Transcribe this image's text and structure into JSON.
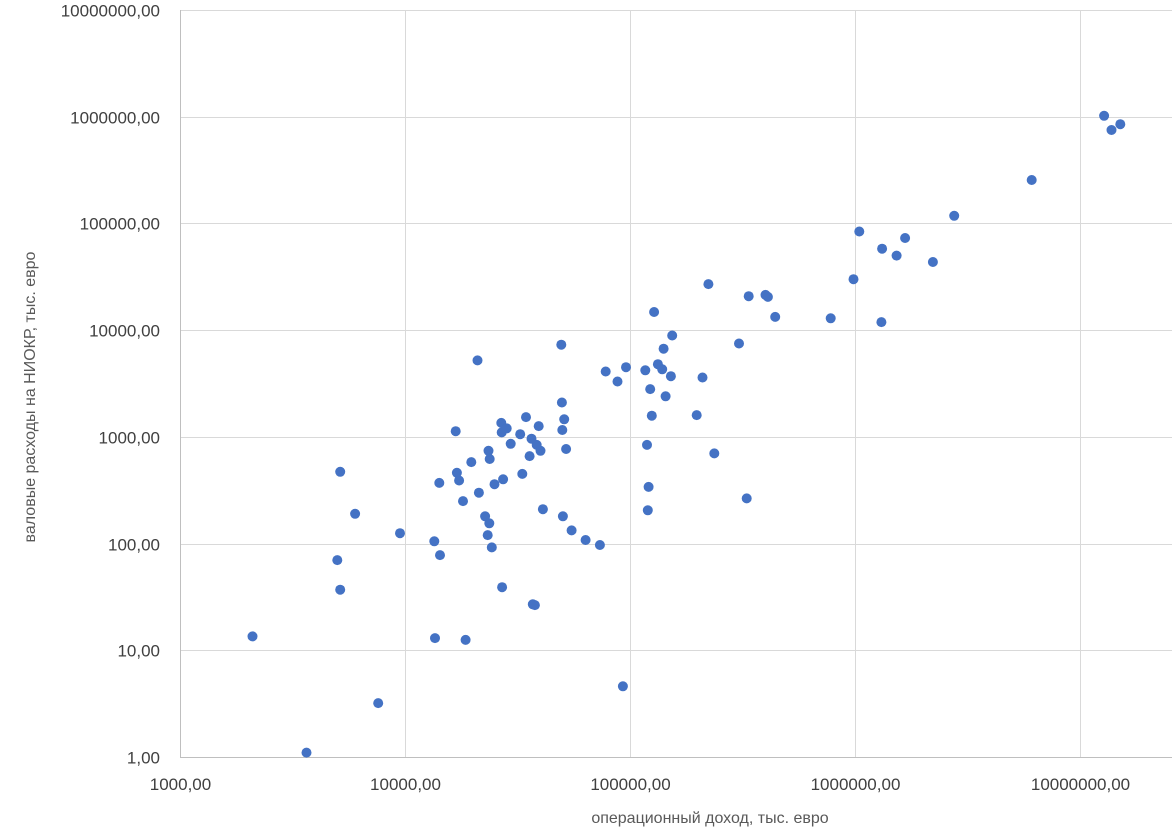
{
  "chart_data": {
    "type": "scatter",
    "title": "",
    "xlabel": "операционный доход, тыс. евро",
    "ylabel": "валовые расходы на НИОКР, тыс. евро",
    "x_scale": "log",
    "y_scale": "log",
    "xlim": [
      1000,
      20000000
    ],
    "ylim": [
      1,
      10000000
    ],
    "grid": true,
    "x_tick_values": [
      1000,
      10000,
      100000,
      1000000,
      10000000
    ],
    "x_tick_labels": [
      "1000,00",
      "10000,00",
      "100000,00",
      "1000000,00",
      "10000000,00"
    ],
    "y_tick_values": [
      1,
      10,
      100,
      1000,
      10000,
      100000,
      1000000,
      10000000
    ],
    "y_tick_labels": [
      "1,00",
      "10,00",
      "100,00",
      "1000,00",
      "10000,00",
      "100000,00",
      "1000000,00",
      "10000000,00"
    ],
    "marker_color": "#4472C4",
    "series": [
      {
        "points": [
          {
            "x": 2100,
            "y": 13.5
          },
          {
            "x": 3650,
            "y": 1.1
          },
          {
            "x": 7600,
            "y": 3.2
          },
          {
            "x": 5000,
            "y": 70
          },
          {
            "x": 5150,
            "y": 37
          },
          {
            "x": 5150,
            "y": 470
          },
          {
            "x": 6000,
            "y": 190
          },
          {
            "x": 9500,
            "y": 125
          },
          {
            "x": 13500,
            "y": 105
          },
          {
            "x": 13600,
            "y": 13
          },
          {
            "x": 14200,
            "y": 370
          },
          {
            "x": 14300,
            "y": 78
          },
          {
            "x": 16800,
            "y": 1130
          },
          {
            "x": 17000,
            "y": 460
          },
          {
            "x": 17400,
            "y": 390
          },
          {
            "x": 18100,
            "y": 250
          },
          {
            "x": 18600,
            "y": 12.5
          },
          {
            "x": 19700,
            "y": 580
          },
          {
            "x": 21000,
            "y": 5200
          },
          {
            "x": 21300,
            "y": 300
          },
          {
            "x": 22700,
            "y": 180
          },
          {
            "x": 23300,
            "y": 120
          },
          {
            "x": 23500,
            "y": 740
          },
          {
            "x": 23700,
            "y": 155
          },
          {
            "x": 23800,
            "y": 620
          },
          {
            "x": 24300,
            "y": 92
          },
          {
            "x": 25000,
            "y": 360
          },
          {
            "x": 26800,
            "y": 1350
          },
          {
            "x": 26900,
            "y": 1100
          },
          {
            "x": 27000,
            "y": 39
          },
          {
            "x": 27300,
            "y": 400
          },
          {
            "x": 28300,
            "y": 1200
          },
          {
            "x": 29500,
            "y": 860
          },
          {
            "x": 32500,
            "y": 1060
          },
          {
            "x": 33200,
            "y": 450
          },
          {
            "x": 34500,
            "y": 1530
          },
          {
            "x": 35800,
            "y": 660
          },
          {
            "x": 36500,
            "y": 960
          },
          {
            "x": 37000,
            "y": 27
          },
          {
            "x": 37800,
            "y": 26.5
          },
          {
            "x": 38500,
            "y": 840
          },
          {
            "x": 39300,
            "y": 1260
          },
          {
            "x": 40000,
            "y": 740
          },
          {
            "x": 41000,
            "y": 210
          },
          {
            "x": 49500,
            "y": 7300
          },
          {
            "x": 49800,
            "y": 2100
          },
          {
            "x": 50000,
            "y": 1160
          },
          {
            "x": 50300,
            "y": 180
          },
          {
            "x": 51000,
            "y": 1460
          },
          {
            "x": 52000,
            "y": 770
          },
          {
            "x": 55000,
            "y": 133
          },
          {
            "x": 63500,
            "y": 108
          },
          {
            "x": 73500,
            "y": 97
          },
          {
            "x": 78000,
            "y": 4100
          },
          {
            "x": 88000,
            "y": 3300
          },
          {
            "x": 93000,
            "y": 4.6
          },
          {
            "x": 96000,
            "y": 4500
          },
          {
            "x": 117000,
            "y": 4200
          },
          {
            "x": 119000,
            "y": 840
          },
          {
            "x": 120000,
            "y": 205
          },
          {
            "x": 121000,
            "y": 340
          },
          {
            "x": 123000,
            "y": 2800
          },
          {
            "x": 125000,
            "y": 1580
          },
          {
            "x": 128000,
            "y": 14800
          },
          {
            "x": 133000,
            "y": 4800
          },
          {
            "x": 139000,
            "y": 4300
          },
          {
            "x": 141000,
            "y": 6700
          },
          {
            "x": 144000,
            "y": 2400
          },
          {
            "x": 152000,
            "y": 3700
          },
          {
            "x": 154000,
            "y": 8900
          },
          {
            "x": 198000,
            "y": 1600
          },
          {
            "x": 210000,
            "y": 3600
          },
          {
            "x": 223000,
            "y": 27000
          },
          {
            "x": 237000,
            "y": 700
          },
          {
            "x": 305000,
            "y": 7500
          },
          {
            "x": 330000,
            "y": 265
          },
          {
            "x": 337000,
            "y": 20800
          },
          {
            "x": 400000,
            "y": 21400
          },
          {
            "x": 410000,
            "y": 20500
          },
          {
            "x": 442000,
            "y": 13300
          },
          {
            "x": 780000,
            "y": 12900
          },
          {
            "x": 985000,
            "y": 30000
          },
          {
            "x": 1045000,
            "y": 84000
          },
          {
            "x": 1310000,
            "y": 11900
          },
          {
            "x": 1320000,
            "y": 58000
          },
          {
            "x": 1530000,
            "y": 50000
          },
          {
            "x": 1670000,
            "y": 73000
          },
          {
            "x": 2220000,
            "y": 43500
          },
          {
            "x": 2760000,
            "y": 118000
          },
          {
            "x": 6100000,
            "y": 255000
          },
          {
            "x": 12800000,
            "y": 1020000
          },
          {
            "x": 13800000,
            "y": 750000
          },
          {
            "x": 15100000,
            "y": 850000
          }
        ]
      }
    ]
  }
}
